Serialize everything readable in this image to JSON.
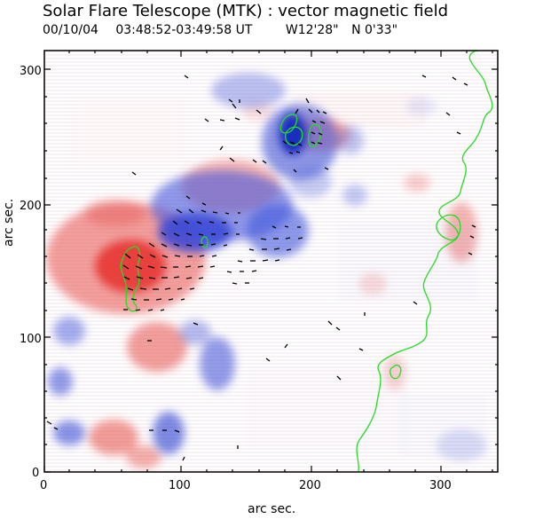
{
  "header": {
    "title": "Solar Flare Telescope (MTK) : vector magnetic field",
    "date": "00/10/04",
    "time_range": "03:48:52-03:49:58 UT",
    "longitude": "W12'28\"",
    "latitude": "N 0'33\""
  },
  "axes": {
    "x_label": "arc sec.",
    "y_label": "arc sec.",
    "x_ticks": [
      "0",
      "100",
      "200",
      "300"
    ],
    "y_ticks": [
      "0",
      "100",
      "200",
      "300"
    ]
  },
  "image": {
    "description_colors": {
      "positive": "#e5534b",
      "negative": "#5f74d8",
      "contour": "#22dd22",
      "vectors": "#000000",
      "background": "#ffffff"
    }
  }
}
